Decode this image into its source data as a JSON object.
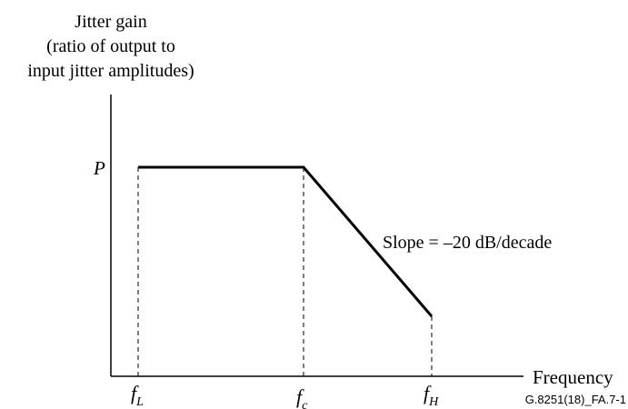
{
  "y_axis_title": {
    "line1": "Jitter gain",
    "line2": "(ratio of output to",
    "line3": "input jitter amplitudes)"
  },
  "x_axis_title": "Frequency",
  "y_marker": "P",
  "x_markers": {
    "f_low": {
      "base": "f",
      "sub": "L"
    },
    "f_c": {
      "base": "f",
      "sub": "c"
    },
    "f_high": {
      "base": "f",
      "sub": "H"
    }
  },
  "slope_label": "Slope = –20 dB/decade",
  "figure_id": "G.8251(18)_FA.7-1"
}
